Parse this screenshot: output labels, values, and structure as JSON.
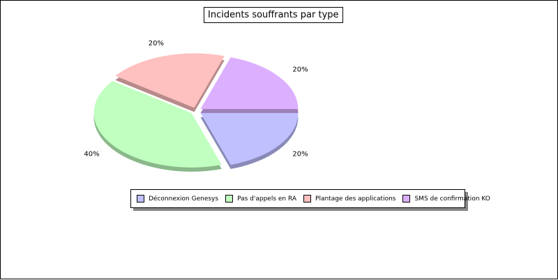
{
  "chart_data": {
    "type": "pie",
    "title": "Incidents souffrants par type",
    "categories": [
      "Déconnexion Genesys",
      "Pas d'appels en RA",
      "Plantage des applications",
      "SMS de confirmation KO"
    ],
    "values": [
      20,
      40,
      20,
      20
    ],
    "labels": [
      "20%",
      "40%",
      "20%",
      "20%"
    ],
    "colors": [
      "#c0c0ff",
      "#c0ffc0",
      "#ffc0c0",
      "#ddb0ff"
    ],
    "legend_position": "bottom",
    "exploded": true,
    "three_d": true
  }
}
